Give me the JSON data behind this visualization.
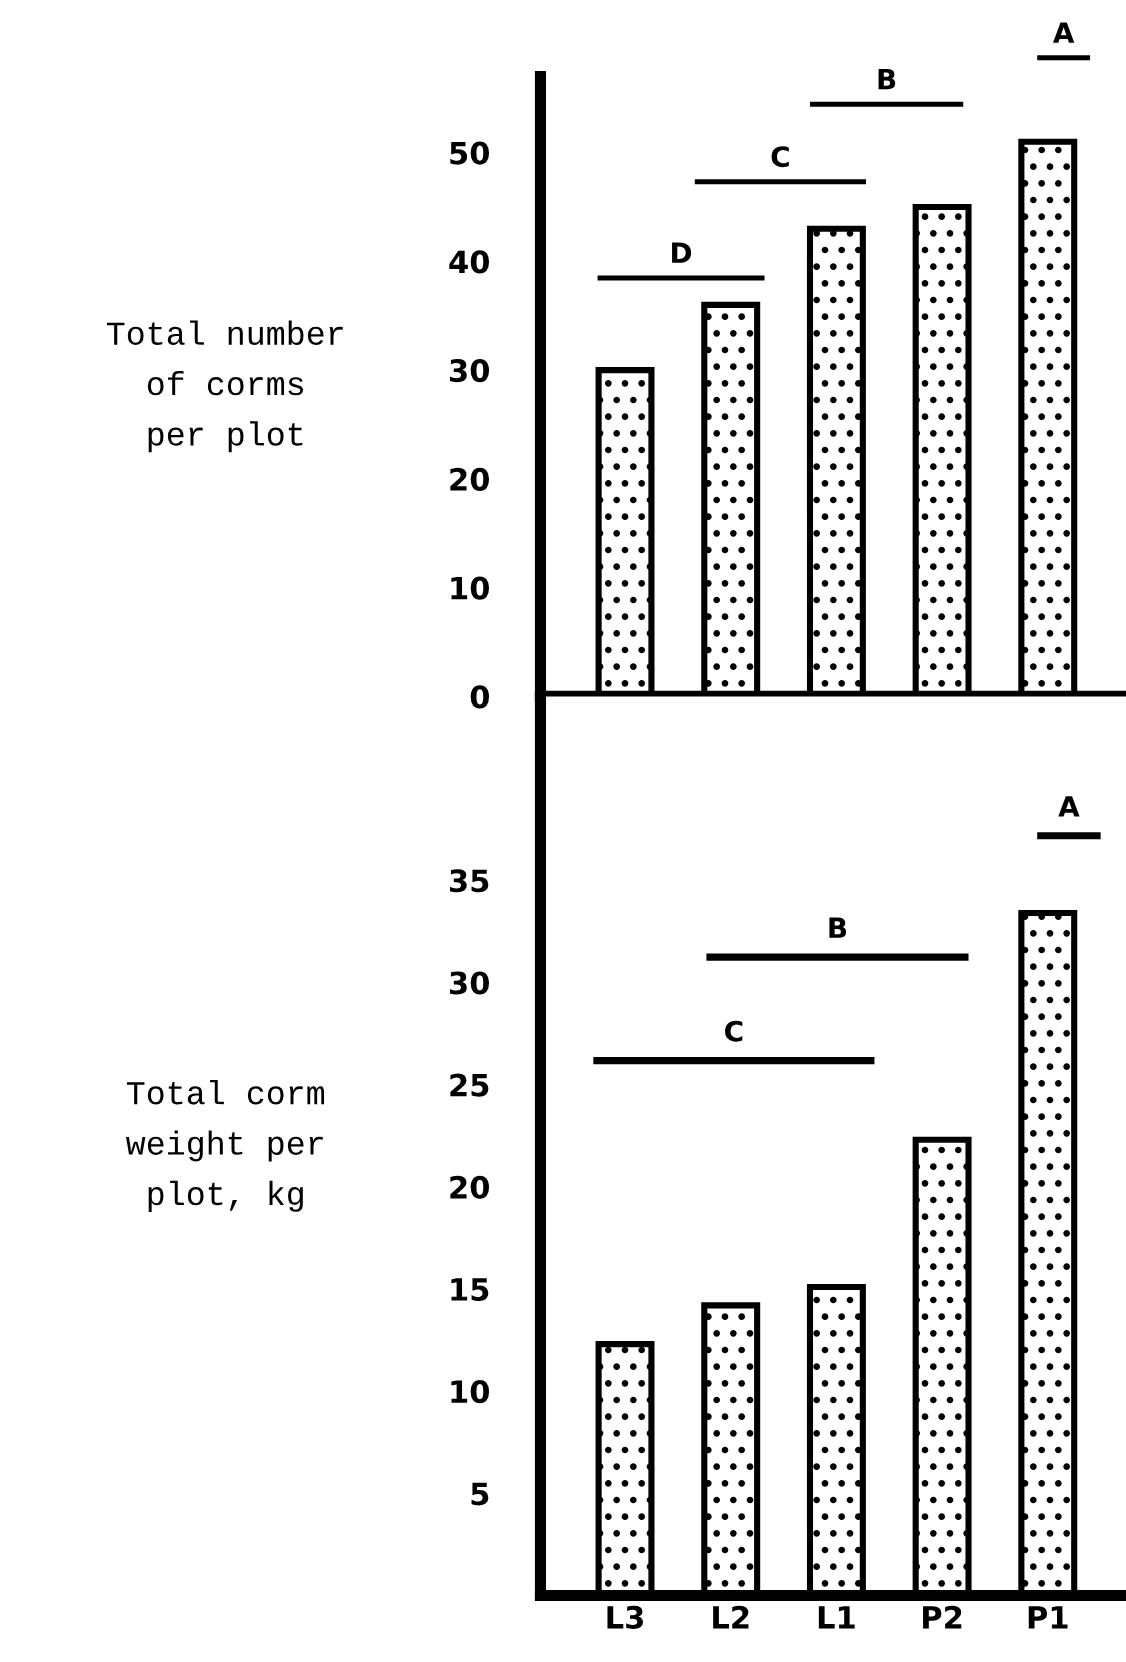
{
  "chart_data": [
    {
      "type": "bar",
      "ylabel": "Total number\nof corms\nper plot",
      "categories": [
        null,
        null,
        null,
        null,
        null
      ],
      "values": [
        30,
        36,
        43,
        45,
        51
      ],
      "color": "#000000",
      "ylim": [
        0,
        57
      ],
      "yticks": [
        0,
        10,
        20,
        30,
        40,
        50
      ],
      "tick_labels": "y",
      "grid": false,
      "legend": false,
      "annotations": [
        "D",
        "C",
        "B",
        "A"
      ]
    },
    {
      "type": "bar",
      "ylabel": "Total corm\nweight per\nplot, kg",
      "categories": [
        "L3",
        "L2",
        "L1",
        "P2",
        "P1"
      ],
      "values": [
        12.3,
        14.2,
        15.1,
        22.3,
        33.4
      ],
      "color": "#000000",
      "ylim": [
        0,
        44
      ],
      "yticks": [
        5,
        10,
        15,
        20,
        25,
        30,
        35
      ],
      "grid": false,
      "legend": false,
      "annotations": [
        "C",
        "B",
        "A"
      ]
    }
  ]
}
